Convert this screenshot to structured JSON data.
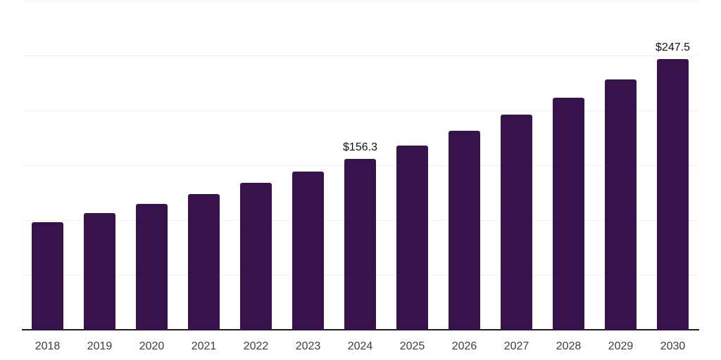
{
  "chart_data": {
    "type": "bar",
    "title": "",
    "categories": [
      "2018",
      "2019",
      "2020",
      "2021",
      "2022",
      "2023",
      "2024",
      "2025",
      "2026",
      "2027",
      "2028",
      "2029",
      "2030"
    ],
    "values": [
      99.0,
      106.9,
      115.4,
      124.6,
      134.5,
      145.2,
      156.3,
      168.7,
      182.1,
      196.6,
      212.2,
      229.1,
      247.5
    ],
    "value_labels": {
      "2024": "$156.3",
      "2030": "$247.5"
    },
    "xlabel": "",
    "ylabel": "",
    "ylim": [
      0,
      300
    ],
    "gridline_step": 50,
    "grid": "horizontal-only",
    "legend_position": "none",
    "colors": {
      "bar": "#38124B",
      "gridline": "#F0F0F0",
      "axis_line": "#1F1F1F",
      "tick_label": "#3D3D3D",
      "value_label": "#111111",
      "background": "#FFFFFF"
    }
  }
}
